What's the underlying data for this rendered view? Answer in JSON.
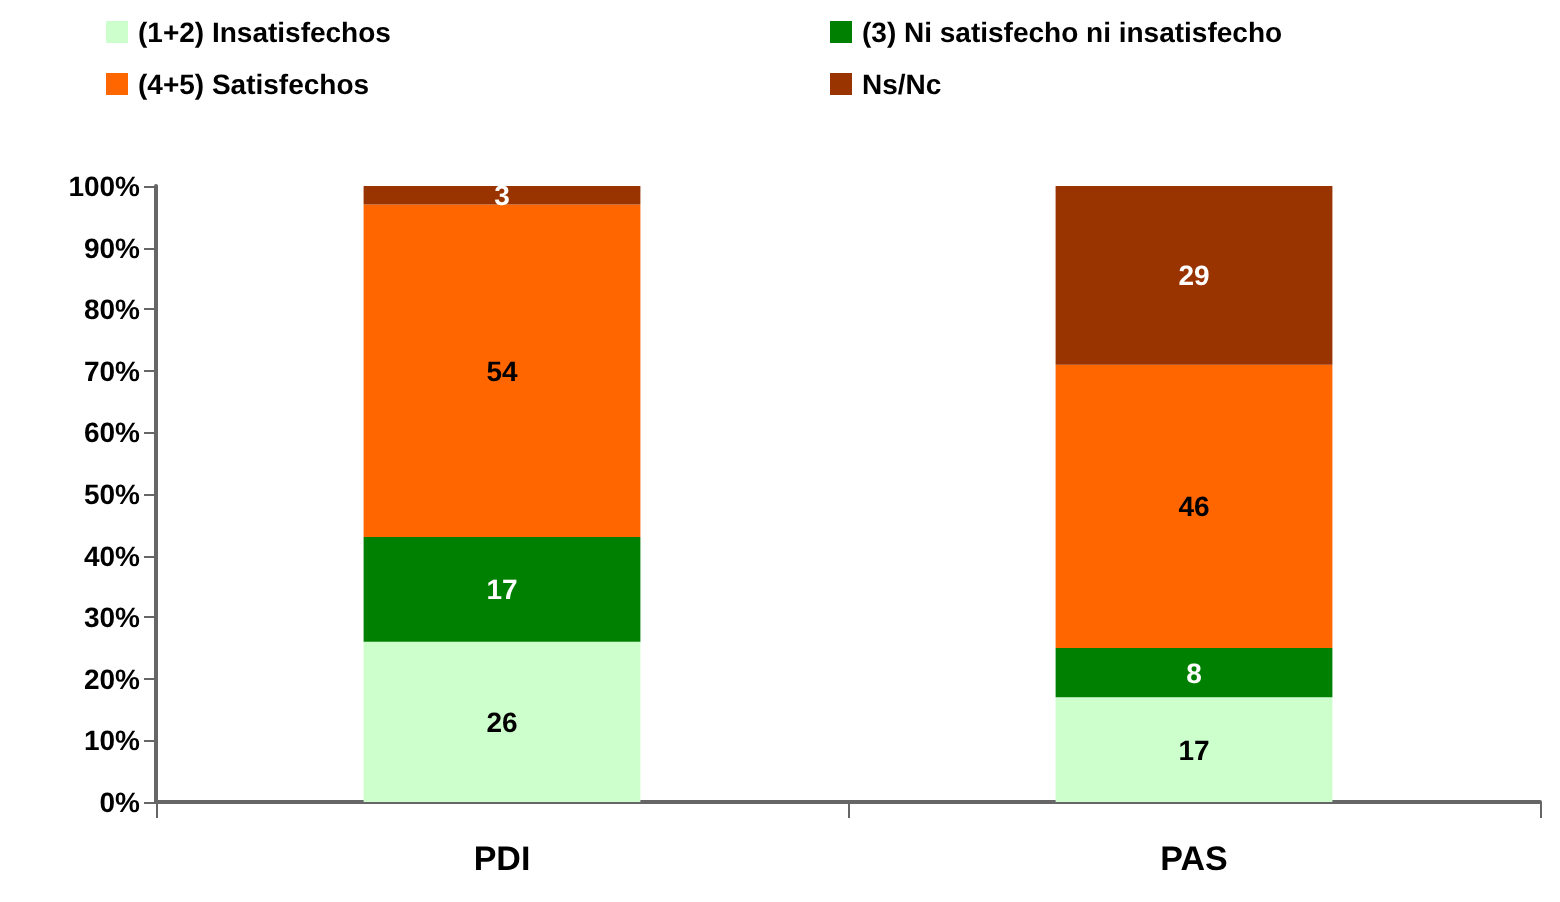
{
  "chart_data": {
    "type": "bar",
    "stacked": true,
    "categories": [
      "PDI",
      "PAS"
    ],
    "series": [
      {
        "name": "(1+2) Insatisfechos",
        "color": "#ccffcc",
        "values": [
          26,
          17
        ]
      },
      {
        "name": "(3) Ni satisfecho ni insatisfecho",
        "color": "#008000",
        "values": [
          17,
          8
        ]
      },
      {
        "name": "(4+5) Satisfechos",
        "color": "#ff6600",
        "values": [
          54,
          46
        ]
      },
      {
        "name": "Ns/Nc",
        "color": "#993300",
        "values": [
          3,
          29
        ]
      }
    ],
    "ylim": [
      0,
      100
    ],
    "yticks": [
      {
        "value": 0,
        "label": "0%"
      },
      {
        "value": 10,
        "label": "10%"
      },
      {
        "value": 20,
        "label": "20%"
      },
      {
        "value": 30,
        "label": "30%"
      },
      {
        "value": 40,
        "label": "40%"
      },
      {
        "value": 50,
        "label": "50%"
      },
      {
        "value": 60,
        "label": "60%"
      },
      {
        "value": 70,
        "label": "70%"
      },
      {
        "value": 80,
        "label": "80%"
      },
      {
        "value": 90,
        "label": "90%"
      },
      {
        "value": 100,
        "label": "100%"
      }
    ],
    "data_labels": true,
    "grid": false,
    "legend": "top"
  }
}
